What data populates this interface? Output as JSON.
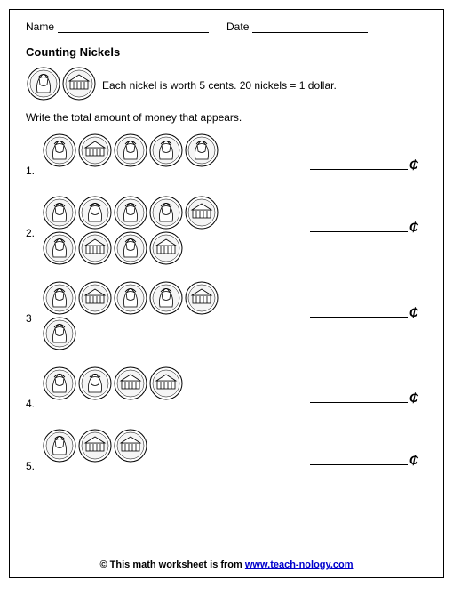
{
  "header": {
    "name_label": "Name",
    "date_label": "Date",
    "name_line_width": 170,
    "date_line_width": 130
  },
  "title": "Counting Nickels",
  "intro": {
    "coins": [
      "heads",
      "tails"
    ],
    "text": "Each nickel is worth 5 cents. 20 nickels = 1 dollar."
  },
  "instruction": "Write the total amount of money that appears.",
  "cent_symbol": "₵",
  "coin_style": {
    "diameter": 38,
    "stroke": "#000000",
    "fill": "#ffffff",
    "inner_fill": "#f5f5f5"
  },
  "problems": [
    {
      "num": "1.",
      "rows": [
        [
          "heads",
          "tails",
          "heads",
          "heads",
          "heads"
        ]
      ]
    },
    {
      "num": "2.",
      "rows": [
        [
          "heads",
          "heads",
          "heads",
          "heads",
          "tails"
        ],
        [
          "heads",
          "tails",
          "heads",
          "tails"
        ]
      ]
    },
    {
      "num": "3",
      "rows": [
        [
          "heads",
          "tails",
          "heads",
          "heads",
          "tails"
        ],
        [
          "heads"
        ]
      ]
    },
    {
      "num": "4.",
      "rows": [
        [
          "heads",
          "heads",
          "tails",
          "tails"
        ]
      ]
    },
    {
      "num": "5.",
      "rows": [
        [
          "heads",
          "tails",
          "tails"
        ]
      ]
    }
  ],
  "footer": {
    "prefix": "© This math worksheet is from ",
    "link_text": "www.teach-nology.com"
  }
}
